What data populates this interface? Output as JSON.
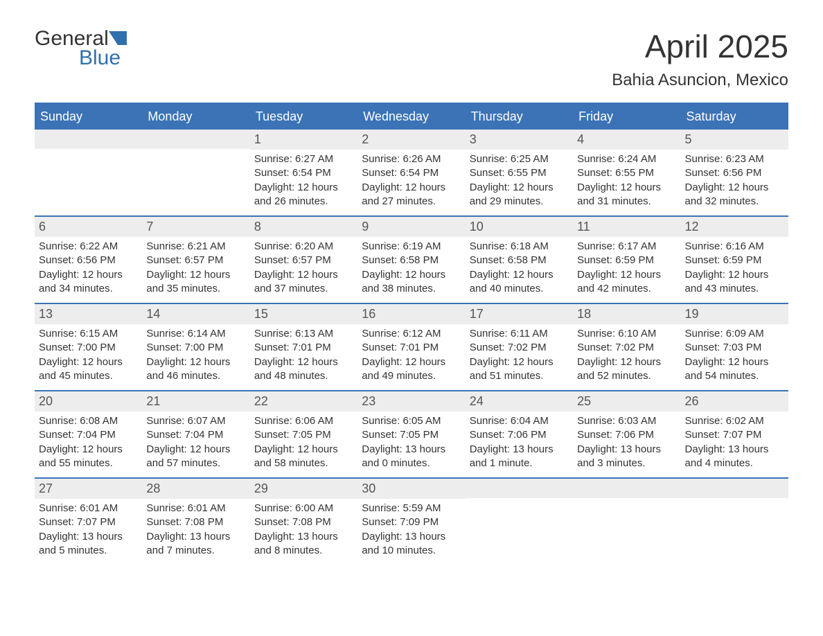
{
  "logo": {
    "top_text": "General",
    "bottom_text": "Blue",
    "flag_color": "#2f6fad",
    "text_color_dark": "#333333"
  },
  "header": {
    "title": "April 2025",
    "location": "Bahia Asuncion, Mexico"
  },
  "theme": {
    "header_bg": "#3b73b6",
    "header_text": "#ffffff",
    "daynum_bg": "#ededed",
    "border_color": "#3b73b6",
    "body_text": "#333333",
    "background": "#ffffff"
  },
  "day_names": [
    "Sunday",
    "Monday",
    "Tuesday",
    "Wednesday",
    "Thursday",
    "Friday",
    "Saturday"
  ],
  "weeks": [
    [
      {
        "empty": true
      },
      {
        "empty": true
      },
      {
        "day": "1",
        "sunrise": "Sunrise: 6:27 AM",
        "sunset": "Sunset: 6:54 PM",
        "daylight1": "Daylight: 12 hours",
        "daylight2": "and 26 minutes."
      },
      {
        "day": "2",
        "sunrise": "Sunrise: 6:26 AM",
        "sunset": "Sunset: 6:54 PM",
        "daylight1": "Daylight: 12 hours",
        "daylight2": "and 27 minutes."
      },
      {
        "day": "3",
        "sunrise": "Sunrise: 6:25 AM",
        "sunset": "Sunset: 6:55 PM",
        "daylight1": "Daylight: 12 hours",
        "daylight2": "and 29 minutes."
      },
      {
        "day": "4",
        "sunrise": "Sunrise: 6:24 AM",
        "sunset": "Sunset: 6:55 PM",
        "daylight1": "Daylight: 12 hours",
        "daylight2": "and 31 minutes."
      },
      {
        "day": "5",
        "sunrise": "Sunrise: 6:23 AM",
        "sunset": "Sunset: 6:56 PM",
        "daylight1": "Daylight: 12 hours",
        "daylight2": "and 32 minutes."
      }
    ],
    [
      {
        "day": "6",
        "sunrise": "Sunrise: 6:22 AM",
        "sunset": "Sunset: 6:56 PM",
        "daylight1": "Daylight: 12 hours",
        "daylight2": "and 34 minutes."
      },
      {
        "day": "7",
        "sunrise": "Sunrise: 6:21 AM",
        "sunset": "Sunset: 6:57 PM",
        "daylight1": "Daylight: 12 hours",
        "daylight2": "and 35 minutes."
      },
      {
        "day": "8",
        "sunrise": "Sunrise: 6:20 AM",
        "sunset": "Sunset: 6:57 PM",
        "daylight1": "Daylight: 12 hours",
        "daylight2": "and 37 minutes."
      },
      {
        "day": "9",
        "sunrise": "Sunrise: 6:19 AM",
        "sunset": "Sunset: 6:58 PM",
        "daylight1": "Daylight: 12 hours",
        "daylight2": "and 38 minutes."
      },
      {
        "day": "10",
        "sunrise": "Sunrise: 6:18 AM",
        "sunset": "Sunset: 6:58 PM",
        "daylight1": "Daylight: 12 hours",
        "daylight2": "and 40 minutes."
      },
      {
        "day": "11",
        "sunrise": "Sunrise: 6:17 AM",
        "sunset": "Sunset: 6:59 PM",
        "daylight1": "Daylight: 12 hours",
        "daylight2": "and 42 minutes."
      },
      {
        "day": "12",
        "sunrise": "Sunrise: 6:16 AM",
        "sunset": "Sunset: 6:59 PM",
        "daylight1": "Daylight: 12 hours",
        "daylight2": "and 43 minutes."
      }
    ],
    [
      {
        "day": "13",
        "sunrise": "Sunrise: 6:15 AM",
        "sunset": "Sunset: 7:00 PM",
        "daylight1": "Daylight: 12 hours",
        "daylight2": "and 45 minutes."
      },
      {
        "day": "14",
        "sunrise": "Sunrise: 6:14 AM",
        "sunset": "Sunset: 7:00 PM",
        "daylight1": "Daylight: 12 hours",
        "daylight2": "and 46 minutes."
      },
      {
        "day": "15",
        "sunrise": "Sunrise: 6:13 AM",
        "sunset": "Sunset: 7:01 PM",
        "daylight1": "Daylight: 12 hours",
        "daylight2": "and 48 minutes."
      },
      {
        "day": "16",
        "sunrise": "Sunrise: 6:12 AM",
        "sunset": "Sunset: 7:01 PM",
        "daylight1": "Daylight: 12 hours",
        "daylight2": "and 49 minutes."
      },
      {
        "day": "17",
        "sunrise": "Sunrise: 6:11 AM",
        "sunset": "Sunset: 7:02 PM",
        "daylight1": "Daylight: 12 hours",
        "daylight2": "and 51 minutes."
      },
      {
        "day": "18",
        "sunrise": "Sunrise: 6:10 AM",
        "sunset": "Sunset: 7:02 PM",
        "daylight1": "Daylight: 12 hours",
        "daylight2": "and 52 minutes."
      },
      {
        "day": "19",
        "sunrise": "Sunrise: 6:09 AM",
        "sunset": "Sunset: 7:03 PM",
        "daylight1": "Daylight: 12 hours",
        "daylight2": "and 54 minutes."
      }
    ],
    [
      {
        "day": "20",
        "sunrise": "Sunrise: 6:08 AM",
        "sunset": "Sunset: 7:04 PM",
        "daylight1": "Daylight: 12 hours",
        "daylight2": "and 55 minutes."
      },
      {
        "day": "21",
        "sunrise": "Sunrise: 6:07 AM",
        "sunset": "Sunset: 7:04 PM",
        "daylight1": "Daylight: 12 hours",
        "daylight2": "and 57 minutes."
      },
      {
        "day": "22",
        "sunrise": "Sunrise: 6:06 AM",
        "sunset": "Sunset: 7:05 PM",
        "daylight1": "Daylight: 12 hours",
        "daylight2": "and 58 minutes."
      },
      {
        "day": "23",
        "sunrise": "Sunrise: 6:05 AM",
        "sunset": "Sunset: 7:05 PM",
        "daylight1": "Daylight: 13 hours",
        "daylight2": "and 0 minutes."
      },
      {
        "day": "24",
        "sunrise": "Sunrise: 6:04 AM",
        "sunset": "Sunset: 7:06 PM",
        "daylight1": "Daylight: 13 hours",
        "daylight2": "and 1 minute."
      },
      {
        "day": "25",
        "sunrise": "Sunrise: 6:03 AM",
        "sunset": "Sunset: 7:06 PM",
        "daylight1": "Daylight: 13 hours",
        "daylight2": "and 3 minutes."
      },
      {
        "day": "26",
        "sunrise": "Sunrise: 6:02 AM",
        "sunset": "Sunset: 7:07 PM",
        "daylight1": "Daylight: 13 hours",
        "daylight2": "and 4 minutes."
      }
    ],
    [
      {
        "day": "27",
        "sunrise": "Sunrise: 6:01 AM",
        "sunset": "Sunset: 7:07 PM",
        "daylight1": "Daylight: 13 hours",
        "daylight2": "and 5 minutes."
      },
      {
        "day": "28",
        "sunrise": "Sunrise: 6:01 AM",
        "sunset": "Sunset: 7:08 PM",
        "daylight1": "Daylight: 13 hours",
        "daylight2": "and 7 minutes."
      },
      {
        "day": "29",
        "sunrise": "Sunrise: 6:00 AM",
        "sunset": "Sunset: 7:08 PM",
        "daylight1": "Daylight: 13 hours",
        "daylight2": "and 8 minutes."
      },
      {
        "day": "30",
        "sunrise": "Sunrise: 5:59 AM",
        "sunset": "Sunset: 7:09 PM",
        "daylight1": "Daylight: 13 hours",
        "daylight2": "and 10 minutes."
      },
      {
        "empty": true
      },
      {
        "empty": true
      },
      {
        "empty": true
      }
    ]
  ]
}
